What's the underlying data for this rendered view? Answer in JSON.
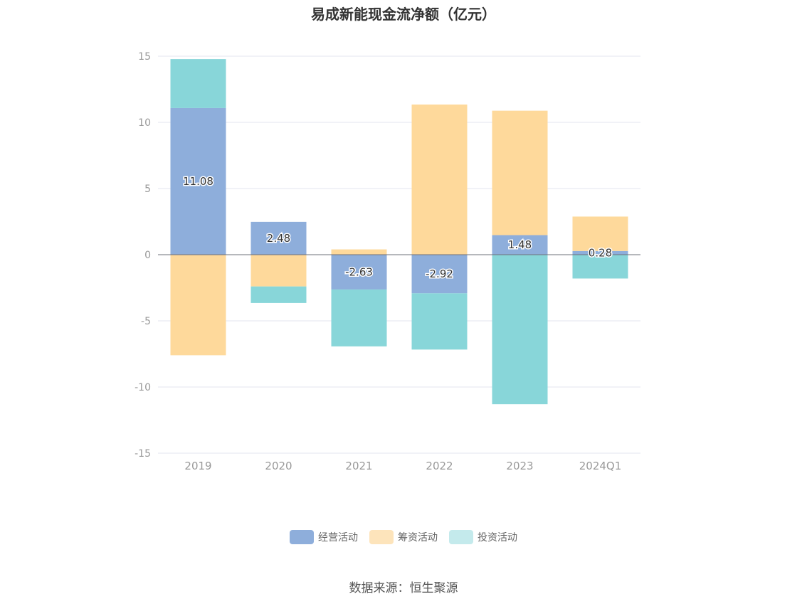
{
  "chart_data": {
    "type": "bar",
    "stacked": true,
    "title": "易成新能现金流净额（亿元）",
    "categories": [
      "2019",
      "2020",
      "2021",
      "2022",
      "2023",
      "2024Q1"
    ],
    "series": [
      {
        "name": "经营活动",
        "color": "#8eaedb",
        "values": [
          11.08,
          2.48,
          -2.63,
          -2.92,
          1.48,
          0.28
        ]
      },
      {
        "name": "筹资活动",
        "color": "#fed99b",
        "values": [
          -7.6,
          -2.4,
          0.4,
          11.35,
          9.4,
          2.6
        ]
      },
      {
        "name": "投资活动",
        "color": "#88d6d9",
        "values": [
          3.7,
          -1.25,
          -4.3,
          -4.25,
          -11.3,
          -1.8
        ]
      }
    ],
    "data_labels": [
      "11.08",
      "2.48",
      "-2.63",
      "-2.92",
      "1.48",
      "0.28"
    ],
    "ylim": [
      -15,
      15
    ],
    "yticks": [
      15,
      10,
      5,
      0,
      -5,
      -10,
      -15
    ],
    "xlabel": "",
    "ylabel": "",
    "grid": true,
    "legend_position": "bottom",
    "legend_colors": [
      "#8eaedb",
      "#fde4bb",
      "#c4eaec"
    ]
  },
  "source": "数据来源：恒生聚源"
}
